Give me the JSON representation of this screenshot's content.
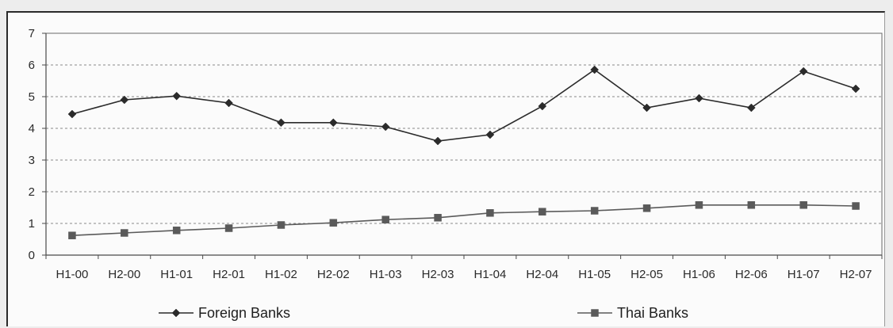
{
  "chart_data": {
    "type": "line",
    "title": "",
    "xlabel": "",
    "ylabel": "",
    "categories": [
      "H1-00",
      "H2-00",
      "H1-01",
      "H2-01",
      "H1-02",
      "H2-02",
      "H1-03",
      "H2-03",
      "H1-04",
      "H2-04",
      "H1-05",
      "H2-05",
      "H1-06",
      "H2-06",
      "H1-07",
      "H2-07"
    ],
    "ylim": [
      0,
      7
    ],
    "yticks": [
      0,
      1,
      2,
      3,
      4,
      5,
      6,
      7
    ],
    "grid": "horizontal dashed",
    "legend_position": "bottom",
    "series": [
      {
        "name": "Foreign Banks",
        "marker": "diamond",
        "color": "#2b2b2b",
        "values": [
          4.45,
          4.9,
          5.02,
          4.8,
          4.18,
          4.18,
          4.05,
          3.6,
          3.8,
          4.7,
          5.85,
          4.65,
          4.95,
          4.65,
          5.8,
          5.25
        ]
      },
      {
        "name": "Thai Banks",
        "marker": "square",
        "color": "#5a5a5a",
        "values": [
          0.62,
          0.7,
          0.78,
          0.85,
          0.95,
          1.02,
          1.12,
          1.18,
          1.33,
          1.37,
          1.4,
          1.48,
          1.58,
          1.58,
          1.58,
          1.55
        ]
      }
    ]
  }
}
